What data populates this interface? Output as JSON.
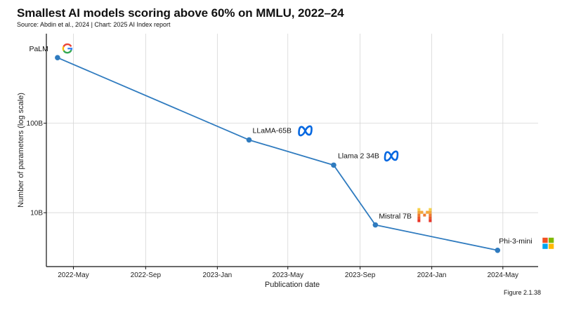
{
  "header": {
    "title": "Smallest AI models scoring above 60% on MMLU, 2022–24",
    "source": "Source: Abdin et al., 2024 | Chart: 2025 AI Index report"
  },
  "footer": {
    "figure_label": "Figure 2.1.38"
  },
  "colors": {
    "line": "#2f7bbf",
    "grid": "#d6d6d6",
    "axis": "#111111",
    "meta_blue": "#0668e1"
  },
  "chart_data": {
    "type": "line",
    "title": "Smallest AI models scoring above 60% on MMLU, 2022–24",
    "xlabel": "Publication date",
    "ylabel": "Number of parameters (log scale)",
    "y_scale": "log",
    "y_unit": "parameters (billions)",
    "ylim": [
      2.5,
      1000
    ],
    "xlim": [
      "2022-03-16",
      "2024-06-30"
    ],
    "grid": true,
    "x_ticks": [
      {
        "date": "2022-05-01",
        "label": "2022-May"
      },
      {
        "date": "2022-09-01",
        "label": "2022-Sep"
      },
      {
        "date": "2023-01-01",
        "label": "2023-Jan"
      },
      {
        "date": "2023-05-01",
        "label": "2023-May"
      },
      {
        "date": "2023-09-01",
        "label": "2023-Sep"
      },
      {
        "date": "2024-01-01",
        "label": "2024-Jan"
      },
      {
        "date": "2024-05-01",
        "label": "2024-May"
      }
    ],
    "y_ticks": [
      {
        "value": 100,
        "label": "100B"
      },
      {
        "value": 10,
        "label": "10B"
      }
    ],
    "series": [
      {
        "points": [
          {
            "date": "2022-04-04",
            "value": 540,
            "label": "PaLM",
            "logo": "google-g-icon"
          },
          {
            "date": "2023-02-24",
            "value": 65,
            "label": "LLaMA-65B",
            "logo": "meta-icon"
          },
          {
            "date": "2023-07-18",
            "value": 34,
            "label": "Llama 2 34B",
            "logo": "meta-icon"
          },
          {
            "date": "2023-09-27",
            "value": 7.3,
            "label": "Mistral 7B",
            "logo": "mistral-icon"
          },
          {
            "date": "2024-04-22",
            "value": 3.8,
            "label": "Phi-3-mini",
            "logo": "microsoft-icon"
          }
        ]
      }
    ]
  }
}
